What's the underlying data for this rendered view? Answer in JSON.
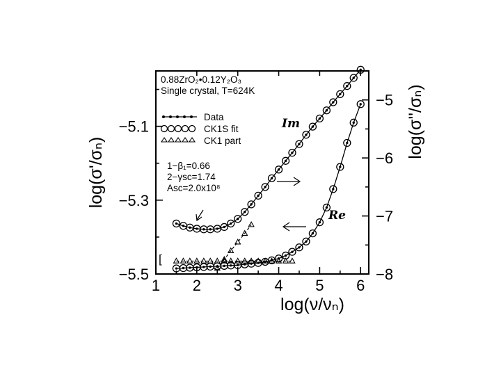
{
  "chart_data": {
    "type": "line",
    "xlabel": "log(ν/νₙ)",
    "ylabel_left": "log(σ'/σₙ)",
    "ylabel_right": "log(σ''/σₙ)",
    "xlim": [
      1,
      6.2
    ],
    "ylim_left": [
      -5.5,
      -4.95
    ],
    "ylim_right": [
      -8,
      -4.5
    ],
    "x_ticks": [
      "1",
      "2",
      "3",
      "4",
      "5",
      "6"
    ],
    "y_left_ticks": [
      "−5.1",
      "−5.3",
      "−5.5"
    ],
    "y_right_ticks": [
      "−5",
      "−6",
      "−7",
      "−8"
    ],
    "info_lines": [
      "0.88ZrO₂•0.12Y₂O₃",
      "Single crystal, T=624K"
    ],
    "legend": [
      {
        "label": "Data",
        "marker": "dot-line"
      },
      {
        "label": "CK1S  fit",
        "marker": "ring"
      },
      {
        "label": "CK1  part",
        "marker": "triangle"
      }
    ],
    "params": [
      "1−β₁=0.66",
      "2−γsc=1.74",
      "Asc=2.0x10⁸"
    ],
    "annotations": {
      "im": "Im",
      "re": "Re",
      "bracket": "["
    },
    "series": [
      {
        "name": "Re",
        "axis": "left",
        "x": [
          1.5,
          1.67,
          1.83,
          2.0,
          2.17,
          2.33,
          2.5,
          2.67,
          2.83,
          3.0,
          3.17,
          3.33,
          3.5,
          3.67,
          3.83,
          4.0,
          4.17,
          4.33,
          4.5,
          4.67,
          4.83,
          5.0,
          5.17,
          5.33,
          5.5,
          5.67,
          5.83,
          6.0
        ],
        "y": [
          -5.485,
          -5.484,
          -5.483,
          -5.482,
          -5.481,
          -5.48,
          -5.479,
          -5.478,
          -5.477,
          -5.476,
          -5.474,
          -5.472,
          -5.47,
          -5.467,
          -5.463,
          -5.458,
          -5.45,
          -5.44,
          -5.428,
          -5.412,
          -5.39,
          -5.36,
          -5.32,
          -5.27,
          -5.21,
          -5.145,
          -5.09,
          -5.04
        ]
      },
      {
        "name": "Im",
        "axis": "right",
        "x": [
          1.5,
          1.67,
          1.83,
          2.0,
          2.17,
          2.33,
          2.5,
          2.67,
          2.83,
          3.0,
          3.17,
          3.33,
          3.5,
          3.67,
          3.83,
          4.0,
          4.17,
          4.33,
          4.5,
          4.67,
          4.83,
          5.0,
          5.17,
          5.33,
          5.5,
          5.67,
          5.83,
          6.0
        ],
        "y": [
          -7.13,
          -7.17,
          -7.2,
          -7.22,
          -7.23,
          -7.23,
          -7.22,
          -7.19,
          -7.13,
          -7.05,
          -6.93,
          -6.8,
          -6.65,
          -6.5,
          -6.35,
          -6.2,
          -6.05,
          -5.91,
          -5.76,
          -5.6,
          -5.46,
          -5.32,
          -5.18,
          -5.04,
          -4.9,
          -4.76,
          -4.62,
          -4.48
        ]
      },
      {
        "name": "CK1 part",
        "axis": "left",
        "x": [
          1.5,
          1.67,
          1.83,
          2.0,
          2.17,
          2.33,
          2.5,
          2.67,
          2.83,
          3.0,
          3.17,
          3.33,
          3.5,
          3.67,
          3.83,
          4.0,
          4.17,
          4.33
        ],
        "y": [
          -5.465,
          -5.465,
          -5.465,
          -5.465,
          -5.465,
          -5.465,
          -5.465,
          -5.465,
          -5.465,
          -5.465,
          -5.465,
          -5.465,
          -5.465,
          -5.465,
          -5.465,
          -5.465,
          -5.465,
          -5.465
        ]
      },
      {
        "name": "CK1 part",
        "axis": "right",
        "x": [
          2.5,
          2.67,
          2.83,
          3.0,
          3.17,
          3.33
        ],
        "y": [
          -7.9,
          -7.75,
          -7.6,
          -7.45,
          -7.3,
          -7.15
        ]
      }
    ]
  }
}
